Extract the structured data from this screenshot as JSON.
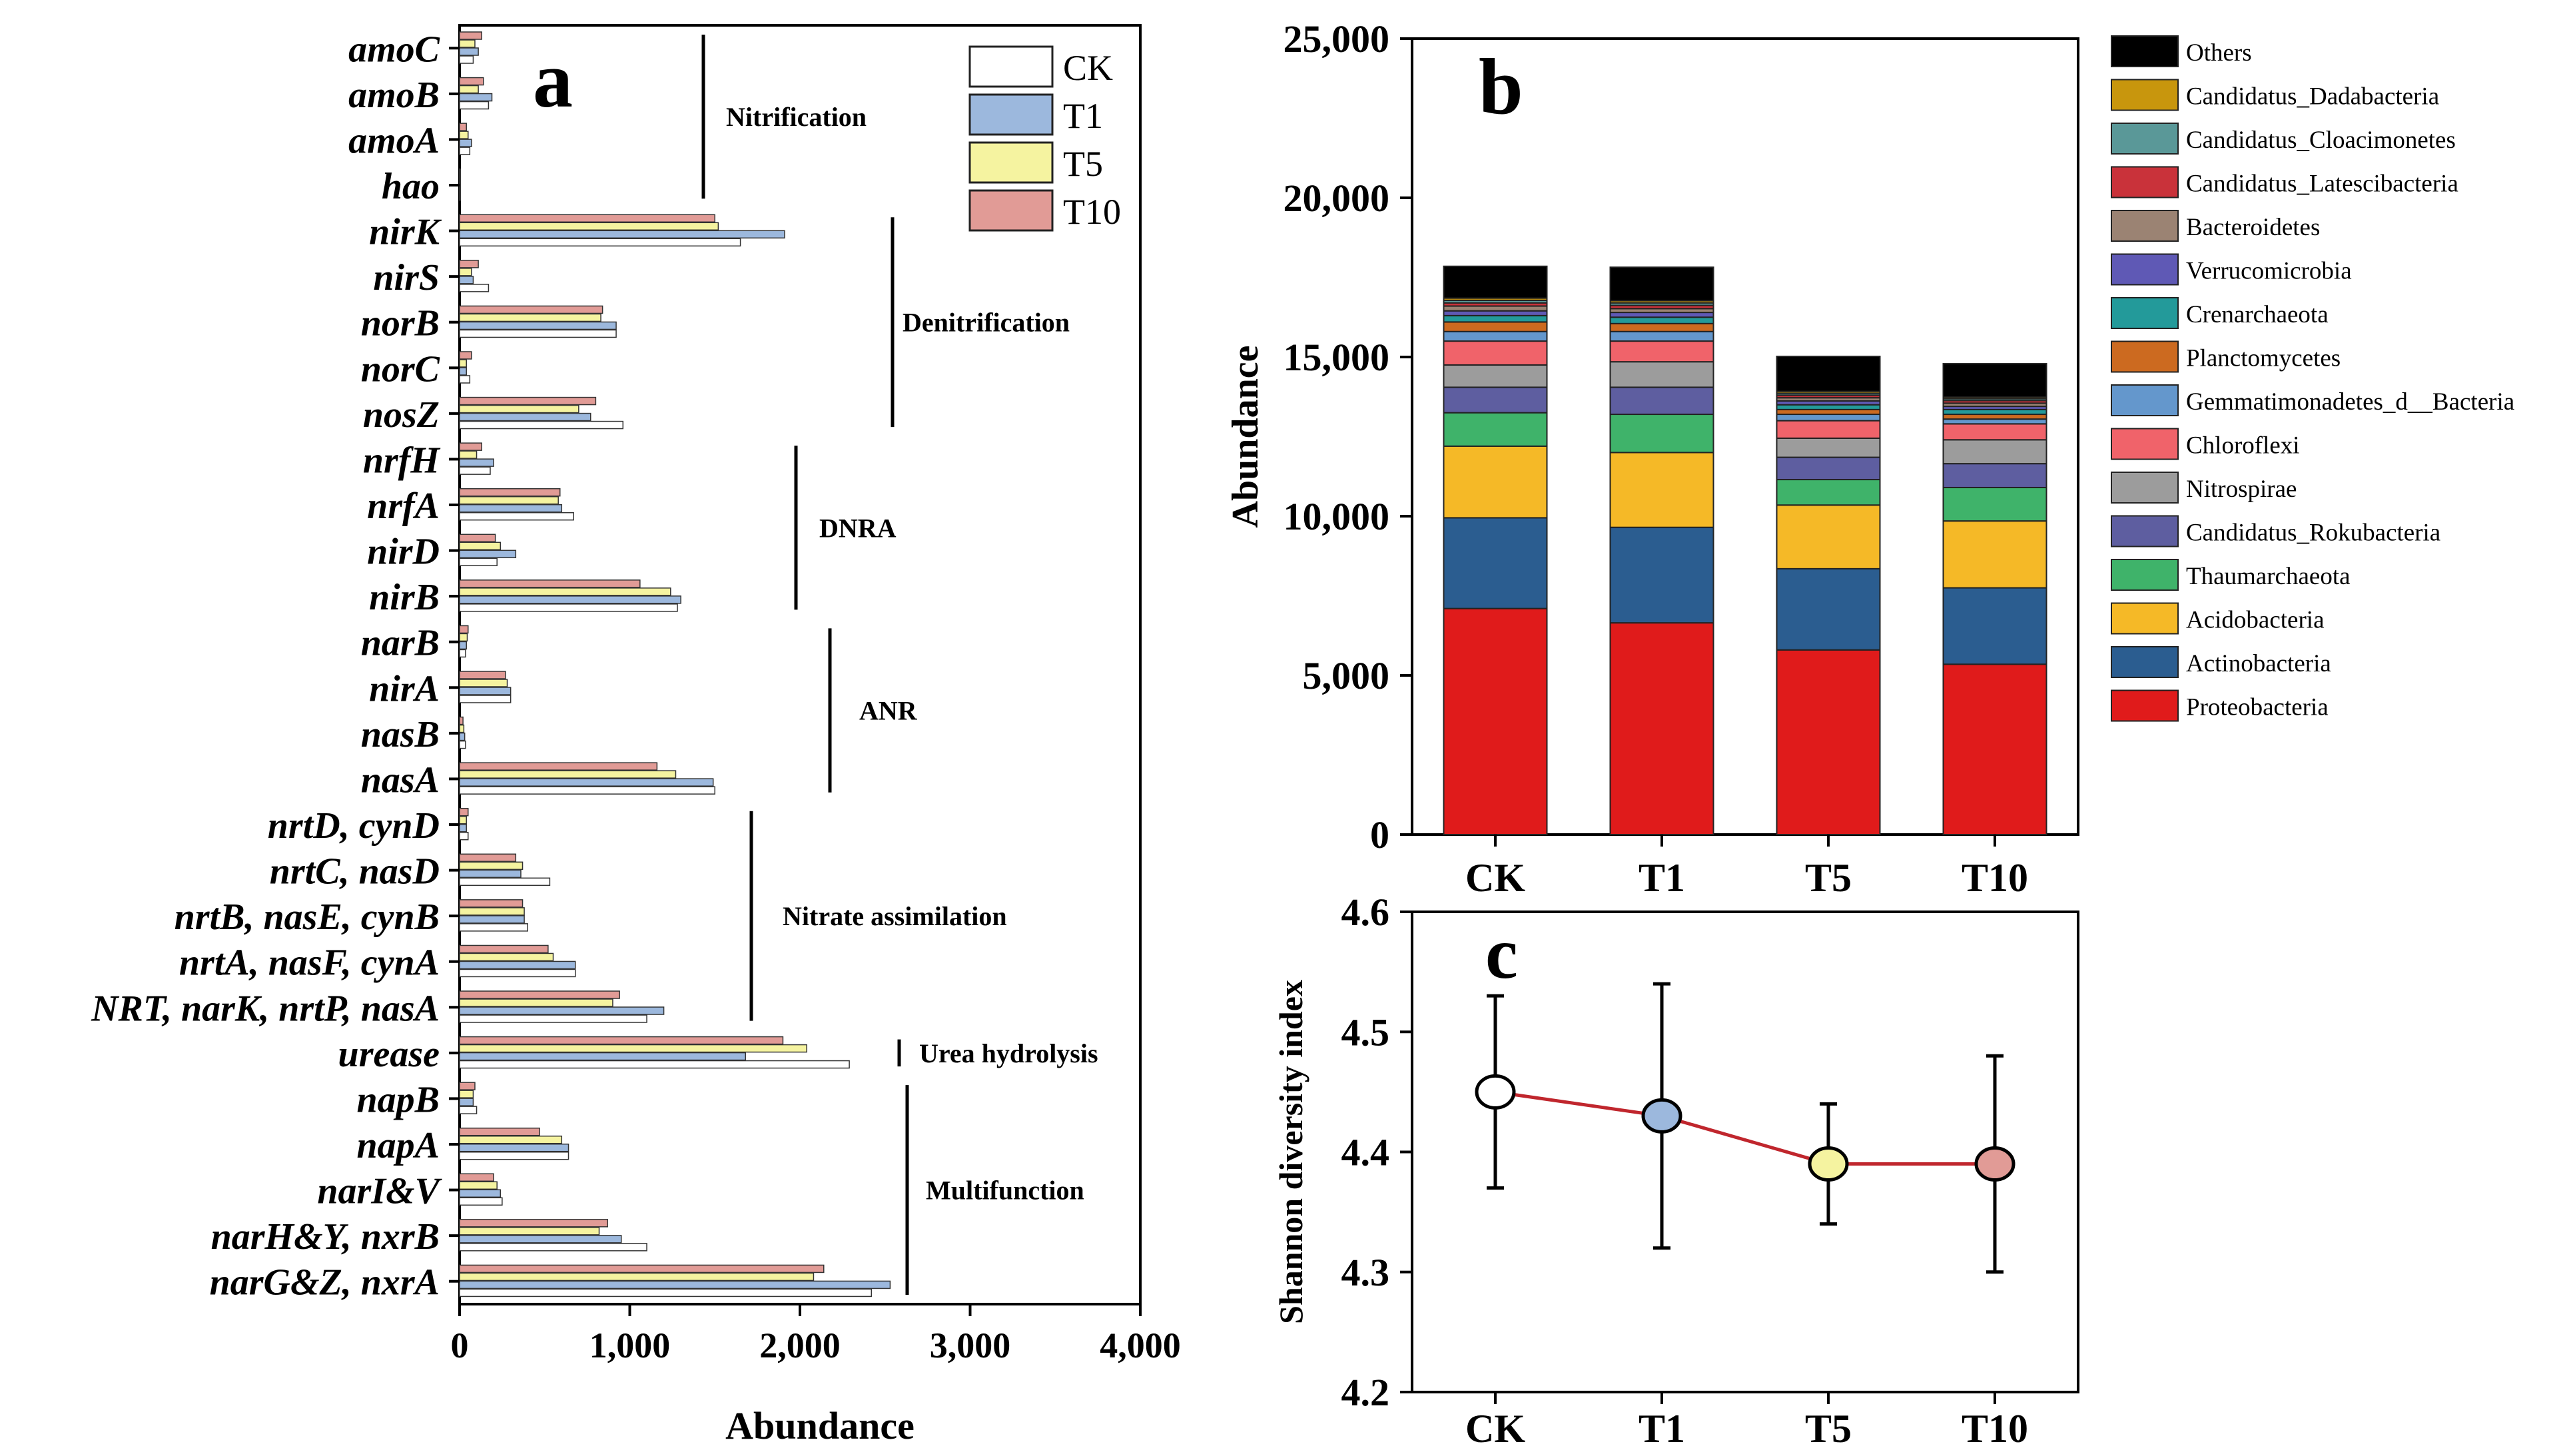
{
  "chart_data": [
    {
      "panel": "a",
      "type": "bar",
      "orientation": "horizontal",
      "panel_label": "a",
      "xlabel": "Abundance",
      "xlim": [
        0,
        4000
      ],
      "xticks": [
        0,
        1000,
        2000,
        3000,
        4000
      ],
      "xtick_labels": [
        "0",
        "1,000",
        "2,000",
        "3,000",
        "4,000"
      ],
      "series_order": [
        "CK",
        "T1",
        "T5",
        "T10"
      ],
      "legend": [
        "CK",
        "T1",
        "T5",
        "T10"
      ],
      "colors": {
        "CK": "#ffffff",
        "T1": "#9cb8dd",
        "T5": "#f5f3a0",
        "T10": "#e19b96"
      },
      "categories": [
        "amoC",
        "amoB",
        "amoA",
        "hao",
        "nirK",
        "nirS",
        "norB",
        "norC",
        "nosZ",
        "nrfH",
        "nrfA",
        "nirD",
        "nirB",
        "narB",
        "nirA",
        "nasB",
        "nasA",
        "nrtD, cynD",
        "nrtC, nasD",
        "nrtB, nasE, cynB",
        "nrtA, nasF, cynA",
        "NRT, narK, nrtP, nasA",
        "urease",
        "napB",
        "napA",
        "narI&V",
        "narH&Y, nxrB",
        "narG&Z, nxrA"
      ],
      "series": [
        {
          "name": "CK",
          "values": [
            80,
            170,
            60,
            5,
            1650,
            170,
            920,
            60,
            960,
            180,
            670,
            220,
            1280,
            35,
            300,
            35,
            1500,
            50,
            530,
            400,
            680,
            1100,
            2290,
            100,
            640,
            250,
            1100,
            2420
          ]
        },
        {
          "name": "T1",
          "values": [
            110,
            190,
            70,
            5,
            1910,
            80,
            920,
            40,
            770,
            200,
            600,
            330,
            1300,
            40,
            300,
            30,
            1490,
            40,
            360,
            380,
            680,
            1200,
            1680,
            80,
            640,
            240,
            950,
            2530
          ]
        },
        {
          "name": "T5",
          "values": [
            90,
            110,
            50,
            5,
            1520,
            70,
            830,
            40,
            700,
            100,
            580,
            240,
            1240,
            45,
            280,
            25,
            1270,
            40,
            370,
            380,
            550,
            900,
            2040,
            80,
            600,
            220,
            820,
            2080
          ]
        },
        {
          "name": "T10",
          "values": [
            130,
            140,
            40,
            5,
            1500,
            110,
            840,
            70,
            800,
            130,
            590,
            210,
            1060,
            50,
            270,
            20,
            1160,
            50,
            330,
            370,
            520,
            940,
            1900,
            90,
            470,
            200,
            870,
            2140
          ]
        }
      ],
      "groups": [
        {
          "name": "Nitrification",
          "from": 0,
          "to": 3
        },
        {
          "name": "Denitrification",
          "from": 4,
          "to": 8
        },
        {
          "name": "DNRA",
          "from": 9,
          "to": 12
        },
        {
          "name": "ANR",
          "from": 13,
          "to": 16
        },
        {
          "name": "Nitrate assimilation",
          "from": 17,
          "to": 21
        },
        {
          "name": "Urea hydrolysis",
          "from": 22,
          "to": 22
        },
        {
          "name": "Multifunction",
          "from": 23,
          "to": 27
        }
      ]
    },
    {
      "panel": "b",
      "type": "bar",
      "stacked": true,
      "panel_label": "b",
      "ylabel": "Abundance",
      "ylim": [
        0,
        25000
      ],
      "yticks": [
        0,
        5000,
        10000,
        15000,
        20000,
        25000
      ],
      "ytick_labels": [
        "0",
        "5,000",
        "10,000",
        "15,000",
        "20,000",
        "25,000"
      ],
      "categories": [
        "CK",
        "T1",
        "T5",
        "T10"
      ],
      "series": [
        {
          "name": "Proteobacteria",
          "color": "#e01b1b",
          "values": [
            7100,
            6650,
            5800,
            5350
          ]
        },
        {
          "name": "Actinobacteria",
          "color": "#2b5d90",
          "values": [
            2850,
            3000,
            2550,
            2400
          ]
        },
        {
          "name": "Acidobacteria",
          "color": "#f5b927",
          "values": [
            2250,
            2350,
            2000,
            2100
          ]
        },
        {
          "name": "Thaumarchaeota",
          "color": "#3fb36a",
          "values": [
            1050,
            1200,
            800,
            1050
          ]
        },
        {
          "name": "Candidatus_Rokubacteria",
          "color": "#5e5ea0",
          "values": [
            800,
            850,
            700,
            750
          ]
        },
        {
          "name": "Nitrospirae",
          "color": "#9c9c9c",
          "values": [
            700,
            800,
            600,
            750
          ]
        },
        {
          "name": "Chloroflexi",
          "color": "#f0636a",
          "values": [
            750,
            650,
            550,
            500
          ]
        },
        {
          "name": "Gemmatimonadetes_d__Bacteria",
          "color": "#6497cc",
          "values": [
            300,
            300,
            200,
            150
          ]
        },
        {
          "name": "Planctomycetes",
          "color": "#cc6a20",
          "values": [
            300,
            250,
            150,
            150
          ]
        },
        {
          "name": "Crenarchaeota",
          "color": "#239a9a",
          "values": [
            200,
            200,
            150,
            150
          ]
        },
        {
          "name": "Verrucomicrobia",
          "color": "#5f59b5",
          "values": [
            150,
            150,
            120,
            100
          ]
        },
        {
          "name": "Bacteroidetes",
          "color": "#9b8373",
          "values": [
            150,
            120,
            100,
            100
          ]
        },
        {
          "name": "Candidatus_Latescibacteria",
          "color": "#c9323a",
          "values": [
            100,
            100,
            80,
            80
          ]
        },
        {
          "name": "Candidatus_Cloacimonetes",
          "color": "#5a9898",
          "values": [
            80,
            80,
            60,
            60
          ]
        },
        {
          "name": "Candidatus_Dadabacteria",
          "color": "#c8960d",
          "values": [
            70,
            70,
            60,
            50
          ]
        },
        {
          "name": "Others",
          "color": "#000000",
          "values": [
            1000,
            1050,
            1100,
            1050
          ]
        }
      ]
    },
    {
      "panel": "c",
      "type": "line",
      "panel_label": "c",
      "ylabel": "Shannon diversity index",
      "ylim": [
        4.2,
        4.6
      ],
      "yticks": [
        4.2,
        4.3,
        4.4,
        4.5,
        4.6
      ],
      "ytick_labels": [
        "4.2",
        "4.3",
        "4.4",
        "4.5",
        "4.6"
      ],
      "categories": [
        "CK",
        "T1",
        "T5",
        "T10"
      ],
      "values": [
        4.45,
        4.43,
        4.39,
        4.39
      ],
      "error_low": [
        4.37,
        4.32,
        4.34,
        4.3
      ],
      "error_high": [
        4.53,
        4.54,
        4.44,
        4.48
      ],
      "marker_colors": [
        "#ffffff",
        "#9cb8dd",
        "#f5f3a0",
        "#e19b96"
      ],
      "line_color": "#c0262d"
    }
  ]
}
